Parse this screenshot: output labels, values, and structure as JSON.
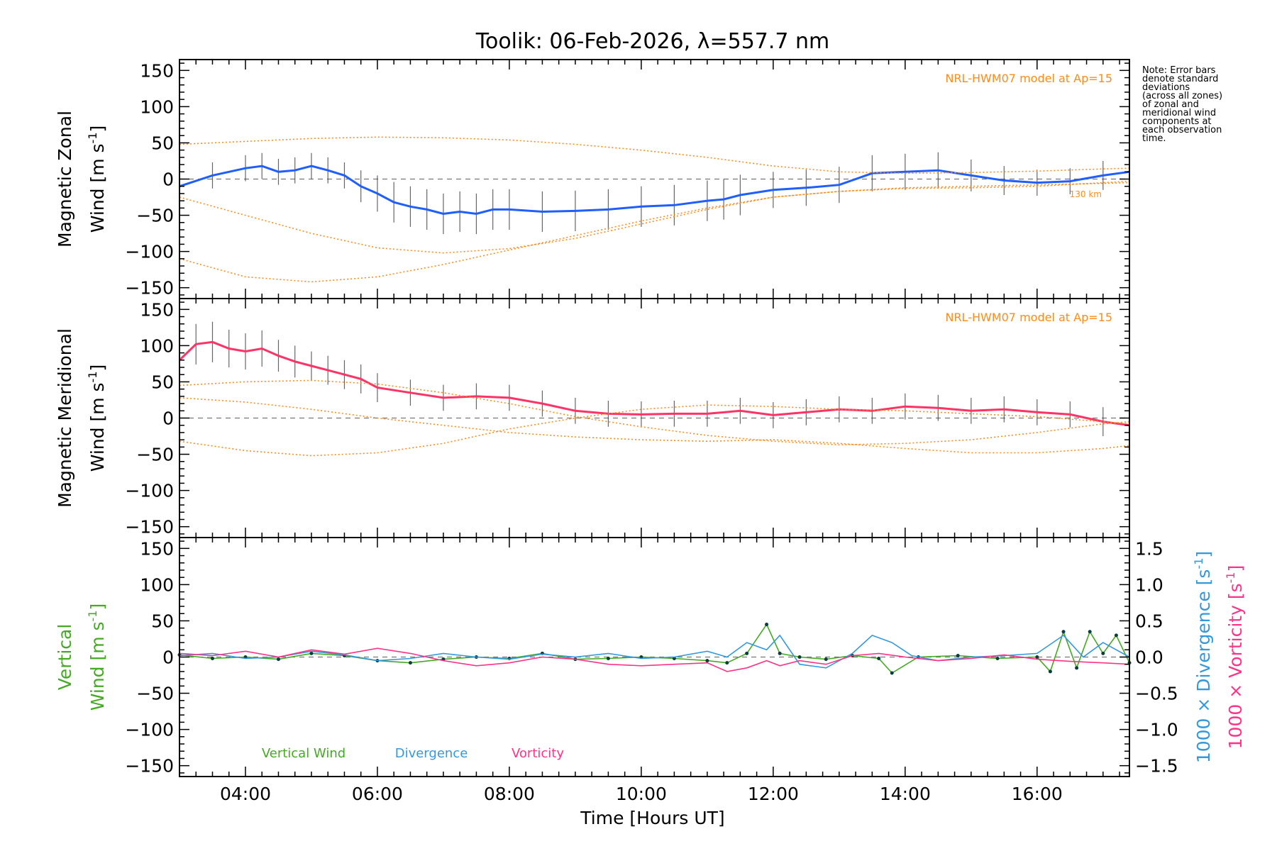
{
  "chart_data": {
    "type": "line",
    "title": "Toolik: 06-Feb-2026, λ=557.7 nm",
    "xlabel": "Time [Hours UT]",
    "xlim": [
      3.0,
      17.4
    ],
    "x_ticks": [
      4,
      6,
      8,
      10,
      12,
      14,
      16
    ],
    "x_tick_labels": [
      "04:00",
      "06:00",
      "08:00",
      "10:00",
      "12:00",
      "14:00",
      "16:00"
    ],
    "note": [
      "Note: Error bars",
      "denote standard",
      "deviations",
      "(across all zones)",
      "of zonal and",
      "meridional wind",
      "components at",
      "each observation",
      "time."
    ],
    "panels": [
      {
        "id": "zonal",
        "ylabel_line1": "Magnetic Zonal",
        "ylabel_line2": "Wind [m s",
        "ylabel_unit_exp": "-1",
        "ylabel_close": "]",
        "ylim": [
          -165,
          165
        ],
        "y_ticks": [
          150,
          100,
          50,
          0,
          -50,
          -100,
          -150
        ],
        "y_tick_labels": [
          "150",
          "100",
          "50",
          "0",
          "−50",
          "−100",
          "−150"
        ],
        "model_label": "NRL-HWM07 model at Ap=15",
        "model_alt_label": "130 km",
        "series": [
          {
            "name": "Mean magnetic zonal wind",
            "color": "#1f5fff",
            "x": [
              3.0,
              3.5,
              4.0,
              4.25,
              4.5,
              4.75,
              5.0,
              5.25,
              5.5,
              5.75,
              6.0,
              6.25,
              6.5,
              6.75,
              7.0,
              7.25,
              7.5,
              7.75,
              8.0,
              8.5,
              9.0,
              9.5,
              10.0,
              10.5,
              11.0,
              11.25,
              11.5,
              12.0,
              12.5,
              13.0,
              13.5,
              14.0,
              14.5,
              15.0,
              15.5,
              16.0,
              16.5,
              17.0,
              17.4
            ],
            "y": [
              -10,
              5,
              15,
              18,
              10,
              12,
              18,
              12,
              5,
              -10,
              -20,
              -32,
              -38,
              -42,
              -48,
              -45,
              -48,
              -42,
              -42,
              -45,
              -44,
              -42,
              -38,
              -36,
              -30,
              -28,
              -22,
              -15,
              -12,
              -8,
              8,
              10,
              12,
              5,
              -2,
              -5,
              -3,
              5,
              10
            ],
            "error": [
              18,
              18,
              18,
              18,
              18,
              18,
              18,
              18,
              18,
              22,
              25,
              28,
              28,
              28,
              28,
              28,
              28,
              28,
              28,
              28,
              28,
              28,
              28,
              28,
              28,
              28,
              28,
              25,
              25,
              25,
              25,
              25,
              25,
              22,
              20,
              18,
              18,
              20,
              22
            ]
          },
          {
            "name": "NRL-HWM07 model",
            "color": "#ff8c1a",
            "style": "dotted",
            "x": [
              3.0,
              4.0,
              5.0,
              6.0,
              7.0,
              8.0,
              9.0,
              10.0,
              11.0,
              12.0,
              13.0,
              14.0,
              15.0,
              16.0,
              17.0,
              17.4
            ],
            "y": [
              48,
              52,
              56,
              58,
              57,
              54,
              48,
              40,
              30,
              18,
              10,
              8,
              9,
              11,
              14,
              15
            ]
          },
          {
            "name": "NRL-HWM07 model",
            "color": "#ff8c1a",
            "style": "dotted",
            "x": [
              3.0,
              4.0,
              5.0,
              6.0,
              7.0,
              8.0,
              9.0,
              10.0,
              11.0,
              12.0,
              13.0,
              14.0,
              15.0,
              16.0,
              17.0,
              17.4
            ],
            "y": [
              -25,
              -50,
              -75,
              -95,
              -102,
              -96,
              -82,
              -62,
              -42,
              -25,
              -17,
              -13,
              -12,
              -10,
              -5,
              -3
            ]
          },
          {
            "name": "NRL-HWM07 model",
            "color": "#ff8c1a",
            "style": "dotted",
            "x": [
              3.0,
              4.0,
              5.0,
              6.0,
              7.0,
              8.0,
              9.0,
              10.0,
              11.0,
              12.0,
              13.0,
              14.0,
              15.0,
              16.0,
              17.0,
              17.4
            ],
            "y": [
              -110,
              -135,
              -142,
              -135,
              -118,
              -98,
              -78,
              -58,
              -40,
              -25,
              -17,
              -12,
              -10,
              -8,
              -6,
              -5
            ]
          }
        ]
      },
      {
        "id": "meridional",
        "ylabel_line1": "Magnetic Meridional",
        "ylabel_line2": "Wind [m s",
        "ylabel_unit_exp": "-1",
        "ylabel_close": "]",
        "ylim": [
          -165,
          165
        ],
        "y_ticks": [
          150,
          100,
          50,
          0,
          -50,
          -100,
          -150
        ],
        "y_tick_labels": [
          "150",
          "100",
          "50",
          "0",
          "−50",
          "−100",
          "−150"
        ],
        "model_label": "NRL-HWM07 model at Ap=15",
        "series": [
          {
            "name": "Mean magnetic meridional wind",
            "color": "#ff3366",
            "x": [
              3.0,
              3.25,
              3.5,
              3.75,
              4.0,
              4.25,
              4.5,
              4.75,
              5.0,
              5.25,
              5.5,
              5.75,
              6.0,
              6.5,
              7.0,
              7.5,
              8.0,
              8.5,
              9.0,
              9.5,
              10.0,
              10.5,
              11.0,
              11.5,
              12.0,
              12.5,
              13.0,
              13.5,
              14.0,
              14.5,
              15.0,
              15.5,
              16.0,
              16.5,
              17.0,
              17.4
            ],
            "y": [
              80,
              102,
              105,
              96,
              92,
              96,
              86,
              78,
              72,
              66,
              60,
              54,
              42,
              35,
              28,
              30,
              28,
              20,
              10,
              6,
              5,
              6,
              6,
              10,
              4,
              8,
              12,
              10,
              16,
              14,
              10,
              12,
              8,
              5,
              -5,
              -10
            ],
            "error": [
              25,
              28,
              28,
              26,
              25,
              25,
              22,
              22,
              20,
              20,
              20,
              20,
              20,
              18,
              18,
              18,
              18,
              18,
              18,
              18,
              18,
              18,
              18,
              18,
              18,
              18,
              18,
              18,
              18,
              18,
              18,
              18,
              18,
              18,
              20,
              22
            ]
          },
          {
            "name": "NRL-HWM07 model",
            "color": "#ff8c1a",
            "style": "dotted",
            "x": [
              3.0,
              4.0,
              5.0,
              6.0,
              7.0,
              8.0,
              9.0,
              10.0,
              11.0,
              12.0,
              13.0,
              14.0,
              15.0,
              16.0,
              17.0,
              17.4
            ],
            "y": [
              45,
              50,
              52,
              47,
              35,
              20,
              2,
              -12,
              -24,
              -32,
              -37,
              -35,
              -30,
              -20,
              -8,
              -5
            ]
          },
          {
            "name": "NRL-HWM07 model",
            "color": "#ff8c1a",
            "style": "dotted",
            "x": [
              3.0,
              4.0,
              5.0,
              6.0,
              7.0,
              8.0,
              9.0,
              10.0,
              11.0,
              12.0,
              13.0,
              14.0,
              15.0,
              16.0,
              17.0,
              17.4
            ],
            "y": [
              28,
              22,
              12,
              0,
              -10,
              -20,
              -26,
              -30,
              -32,
              -30,
              -35,
              -42,
              -48,
              -48,
              -42,
              -38
            ]
          },
          {
            "name": "NRL-HWM07 model",
            "color": "#ff8c1a",
            "style": "dotted",
            "x": [
              3.0,
              4.0,
              5.0,
              6.0,
              7.0,
              8.0,
              9.0,
              10.0,
              11.0,
              12.0,
              13.0,
              14.0,
              15.0,
              16.0,
              17.0,
              17.4
            ],
            "y": [
              -32,
              -45,
              -52,
              -48,
              -35,
              -15,
              0,
              12,
              18,
              16,
              12,
              10,
              6,
              2,
              -5,
              -8
            ]
          }
        ]
      },
      {
        "id": "vertical",
        "ylabel_line1": "Vertical",
        "ylabel_line2": "Wind [m s",
        "ylabel_unit_exp": "-1",
        "ylabel_close": "]",
        "ylim": [
          -165,
          165
        ],
        "y_ticks": [
          150,
          100,
          50,
          0,
          -50,
          -100,
          -150
        ],
        "y_tick_labels": [
          "150",
          "100",
          "50",
          "0",
          "−50",
          "−100",
          "−150"
        ],
        "right_ylim": [
          -1.65,
          1.65
        ],
        "right_ticks": [
          1.5,
          1.0,
          0.5,
          0.0,
          -0.5,
          -1.0,
          -1.5
        ],
        "right_tick_labels": [
          "1.5",
          "1.0",
          "0.5",
          "0.0",
          "−0.5",
          "−1.0",
          "−1.5"
        ],
        "right_label_divergence": "1000 × Divergence [s",
        "right_label_vorticity": "1000 × Vorticity [s",
        "right_label_exp": "-1",
        "right_label_close": "]",
        "legend": [
          "Vertical Wind",
          "Divergence",
          "Vorticity"
        ],
        "series": [
          {
            "name": "Vertical Wind",
            "color": "#44aa22",
            "axis": "left",
            "x": [
              3.0,
              3.5,
              4.0,
              4.5,
              5.0,
              5.5,
              6.0,
              6.5,
              7.0,
              7.5,
              8.0,
              8.5,
              9.0,
              9.5,
              10.0,
              10.5,
              11.0,
              11.3,
              11.6,
              11.9,
              12.1,
              12.4,
              12.8,
              13.2,
              13.6,
              13.8,
              14.2,
              14.8,
              15.4,
              16.0,
              16.2,
              16.4,
              16.6,
              16.8,
              17.0,
              17.2,
              17.4
            ],
            "y": [
              3,
              -2,
              0,
              -3,
              5,
              2,
              -5,
              -8,
              -3,
              0,
              -2,
              5,
              -3,
              -2,
              0,
              -2,
              -5,
              -8,
              5,
              45,
              5,
              0,
              -3,
              2,
              -2,
              -22,
              0,
              2,
              -2,
              0,
              -20,
              35,
              -15,
              35,
              5,
              30,
              -8
            ]
          },
          {
            "name": "Divergence",
            "color": "#3399dd",
            "axis": "right",
            "x": [
              3.0,
              3.5,
              4.0,
              4.5,
              5.0,
              5.5,
              6.0,
              6.5,
              7.0,
              7.5,
              8.0,
              8.5,
              9.0,
              9.5,
              10.0,
              10.5,
              11.0,
              11.3,
              11.6,
              11.9,
              12.1,
              12.4,
              12.8,
              13.2,
              13.5,
              13.8,
              14.1,
              14.5,
              15.0,
              15.5,
              16.0,
              16.4,
              16.7,
              17.0,
              17.4
            ],
            "y": [
              0.02,
              0.05,
              -0.02,
              0.0,
              0.08,
              0.03,
              -0.05,
              -0.02,
              0.05,
              0.0,
              -0.03,
              0.04,
              0.0,
              0.05,
              -0.02,
              0.0,
              0.08,
              0.0,
              0.2,
              0.1,
              0.3,
              -0.1,
              -0.15,
              0.05,
              0.3,
              0.2,
              0.02,
              -0.05,
              0.0,
              0.02,
              0.05,
              0.3,
              0.0,
              0.2,
              0.0
            ]
          },
          {
            "name": "Vorticity",
            "color": "#ff3388",
            "axis": "right",
            "x": [
              3.0,
              3.5,
              4.0,
              4.5,
              5.0,
              5.5,
              6.0,
              6.5,
              7.0,
              7.5,
              8.0,
              8.5,
              9.0,
              9.5,
              10.0,
              10.5,
              11.0,
              11.3,
              11.6,
              11.9,
              12.1,
              12.4,
              12.8,
              13.2,
              13.6,
              14.0,
              14.5,
              15.0,
              15.5,
              16.0,
              16.5,
              17.0,
              17.4
            ],
            "y": [
              0.05,
              0.02,
              0.08,
              0.0,
              0.1,
              0.04,
              0.12,
              0.05,
              -0.05,
              -0.12,
              -0.08,
              0.0,
              -0.03,
              -0.1,
              -0.12,
              -0.1,
              -0.08,
              -0.2,
              -0.15,
              -0.05,
              -0.12,
              -0.05,
              -0.1,
              0.02,
              0.05,
              0.0,
              -0.05,
              -0.02,
              0.03,
              -0.03,
              -0.06,
              -0.08,
              -0.1
            ]
          }
        ]
      }
    ]
  }
}
